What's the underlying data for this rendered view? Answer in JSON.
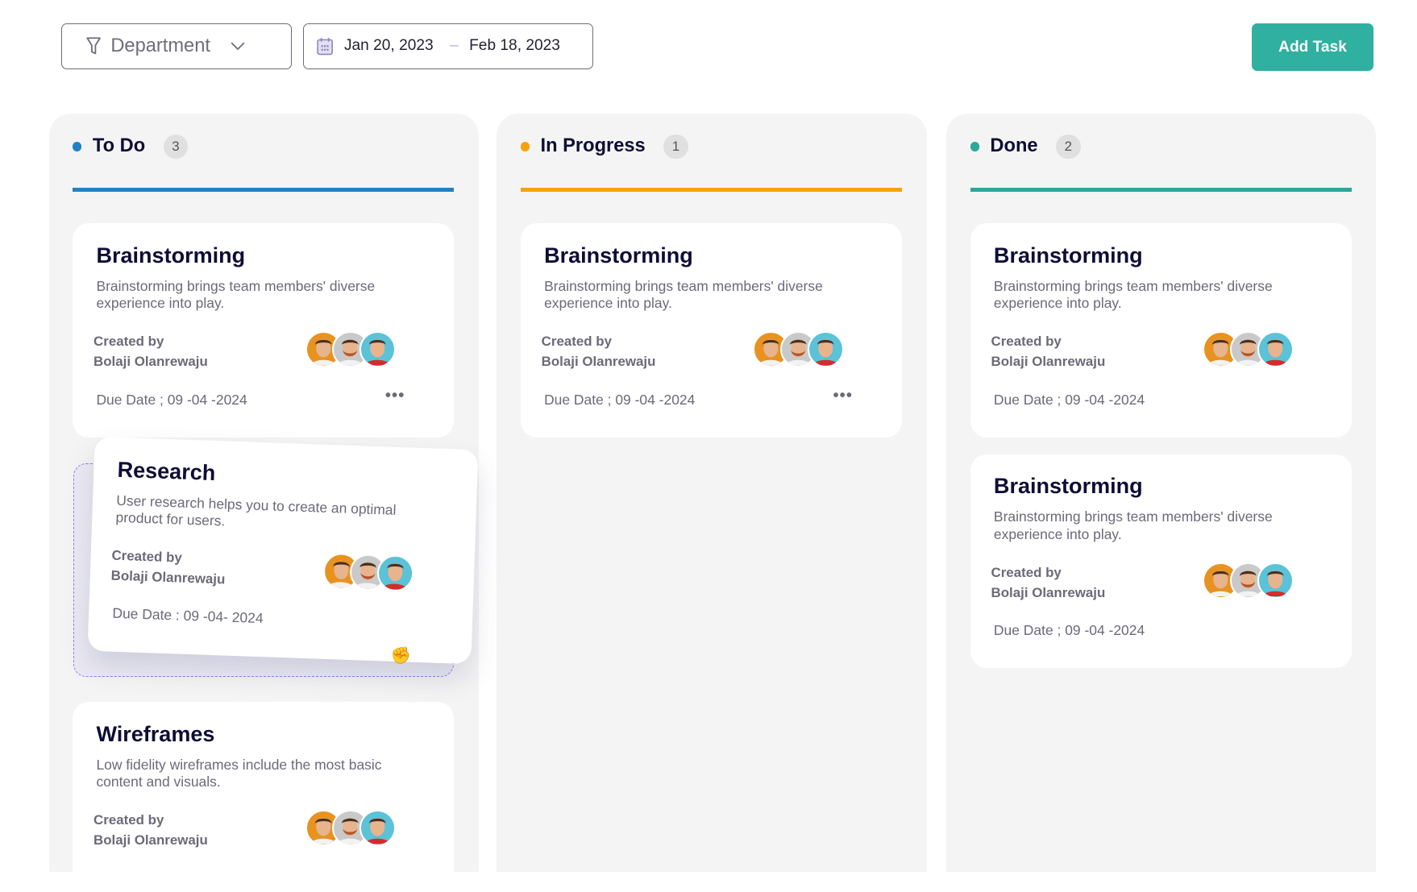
{
  "toolbar": {
    "department_label": "Department",
    "date_start": "Jan 20, 2023",
    "date_separator": "–",
    "date_end": "Feb 18, 2023",
    "add_task_label": "Add Task",
    "accent_color": "#2fb0a0"
  },
  "columns": [
    {
      "title": "To Do",
      "count": "3",
      "color": "#2182c3",
      "cards": [
        {
          "title": "Brainstorming",
          "desc": "Brainstorming brings team members' diverse experience into play.",
          "created_label": "Created by",
          "creator": "Bolaji Olanrewaju",
          "due": "Due Date ; 09 -04 -2024",
          "more": "•••"
        },
        {
          "title": "Research",
          "desc": "User research helps you to create an optimal product for users.",
          "created_label": "Created by",
          "creator": "Bolaji Olanrewaju",
          "due": "Due Date : 09 -04- 2024",
          "dragging": true
        },
        {
          "title": "Wireframes",
          "desc": "Low fidelity wireframes include the most basic content and visuals.",
          "created_label": "Created by",
          "creator": "Bolaji Olanrewaju"
        }
      ]
    },
    {
      "title": "In Progress",
      "count": "1",
      "color": "#f5a30b",
      "cards": [
        {
          "title": "Brainstorming",
          "desc": "Brainstorming brings team members' diverse experience into play.",
          "created_label": "Created by",
          "creator": "Bolaji Olanrewaju",
          "due": "Due Date ; 09 -04 -2024",
          "more": "•••"
        }
      ]
    },
    {
      "title": "Done",
      "count": "2",
      "color": "#2aa89a",
      "cards": [
        {
          "title": "Brainstorming",
          "desc": "Brainstorming brings team members' diverse experience into play.",
          "created_label": "Created by",
          "creator": "Bolaji Olanrewaju",
          "due": "Due Date ; 09 -04 -2024"
        },
        {
          "title": "Brainstorming",
          "desc": "Brainstorming brings team members' diverse experience into play.",
          "created_label": "Created by",
          "creator": "Bolaji Olanrewaju",
          "due": "Due Date ; 09 -04 -2024"
        }
      ]
    }
  ],
  "avatar_colors": [
    "#e8921f",
    "#c9c9c9",
    "#5bc2d8"
  ]
}
